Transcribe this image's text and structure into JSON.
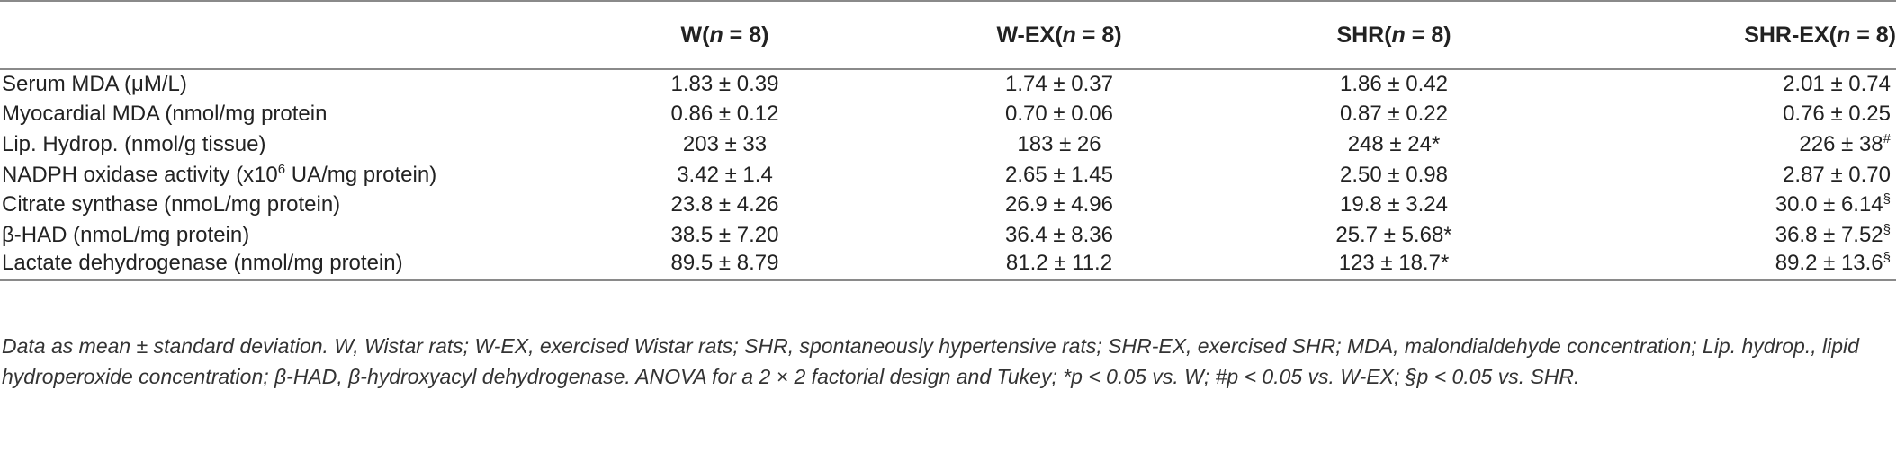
{
  "table": {
    "headers": [
      {
        "name": "",
        "label": "",
        "n": ""
      },
      {
        "name": "group-w",
        "label": "W(",
        "n": "n",
        "eq": " = 8)"
      },
      {
        "name": "group-w-ex",
        "label": "W-EX(",
        "n": "n",
        "eq": " = 8)"
      },
      {
        "name": "group-shr",
        "label": "SHR(",
        "n": "n",
        "eq": " = 8)"
      },
      {
        "name": "group-shr-ex",
        "label": "SHR-EX(",
        "n": "n",
        "eq": " = 8)"
      }
    ],
    "rows": [
      {
        "label": "Serum MDA (μM/L)",
        "label_sup": "",
        "label_suffix": "",
        "cells": [
          {
            "v": "1.83 ± 0.39",
            "s": ""
          },
          {
            "v": "1.74 ± 0.37",
            "s": ""
          },
          {
            "v": "1.86 ± 0.42",
            "s": ""
          },
          {
            "v": "2.01 ± 0.74",
            "s": ""
          }
        ]
      },
      {
        "label": "Myocardial MDA (nmol/mg protein",
        "label_sup": "",
        "label_suffix": "",
        "cells": [
          {
            "v": "0.86 ± 0.12",
            "s": ""
          },
          {
            "v": "0.70 ± 0.06",
            "s": ""
          },
          {
            "v": "0.87 ± 0.22",
            "s": ""
          },
          {
            "v": "0.76 ± 0.25",
            "s": ""
          }
        ]
      },
      {
        "label": "Lip. Hydrop. (nmol/g tissue)",
        "label_sup": "",
        "label_suffix": "",
        "cells": [
          {
            "v": "203 ± 33",
            "s": ""
          },
          {
            "v": "183 ± 26",
            "s": ""
          },
          {
            "v": "248 ± 24*",
            "s": ""
          },
          {
            "v": "226 ± 38",
            "s": "#"
          }
        ]
      },
      {
        "label": "NADPH oxidase activity (x10",
        "label_sup": "6",
        "label_suffix": " UA/mg protein)",
        "cells": [
          {
            "v": "3.42 ± 1.4",
            "s": ""
          },
          {
            "v": "2.65 ± 1.45",
            "s": ""
          },
          {
            "v": "2.50 ± 0.98",
            "s": ""
          },
          {
            "v": "2.87 ± 0.70",
            "s": ""
          }
        ]
      },
      {
        "label": "Citrate synthase (nmoL/mg protein)",
        "label_sup": "",
        "label_suffix": "",
        "cells": [
          {
            "v": "23.8 ± 4.26",
            "s": ""
          },
          {
            "v": "26.9 ± 4.96",
            "s": ""
          },
          {
            "v": "19.8 ± 3.24",
            "s": ""
          },
          {
            "v": "30.0 ± 6.14",
            "s": "§"
          }
        ]
      },
      {
        "label": "β-HAD (nmoL/mg protein)",
        "label_sup": "",
        "label_suffix": "",
        "cells": [
          {
            "v": "38.5 ± 7.20",
            "s": ""
          },
          {
            "v": "36.4 ± 8.36",
            "s": ""
          },
          {
            "v": "25.7 ± 5.68*",
            "s": ""
          },
          {
            "v": "36.8 ± 7.52",
            "s": "§"
          }
        ]
      },
      {
        "label": "Lactate dehydrogenase (nmol/mg protein)",
        "label_sup": "",
        "label_suffix": "",
        "cells": [
          {
            "v": "89.5 ± 8.79",
            "s": ""
          },
          {
            "v": "81.2 ± 11.2",
            "s": ""
          },
          {
            "v": "123 ± 18.7*",
            "s": ""
          },
          {
            "v": "89.2 ± 13.6",
            "s": "§"
          }
        ]
      }
    ]
  },
  "footnote": "Data as mean ± standard deviation. W, Wistar rats; W-EX, exercised Wistar rats; SHR, spontaneously hypertensive rats; SHR-EX, exercised SHR; MDA, malondialdehyde concentration; Lip. hydrop., lipid hydroperoxide concentration; β-HAD, β-hydroxyacyl dehydrogenase. ANOVA for a 2 × 2 factorial design and Tukey; *p < 0.05 vs. W; #p < 0.05 vs. W-EX; §p < 0.05 vs. SHR."
}
